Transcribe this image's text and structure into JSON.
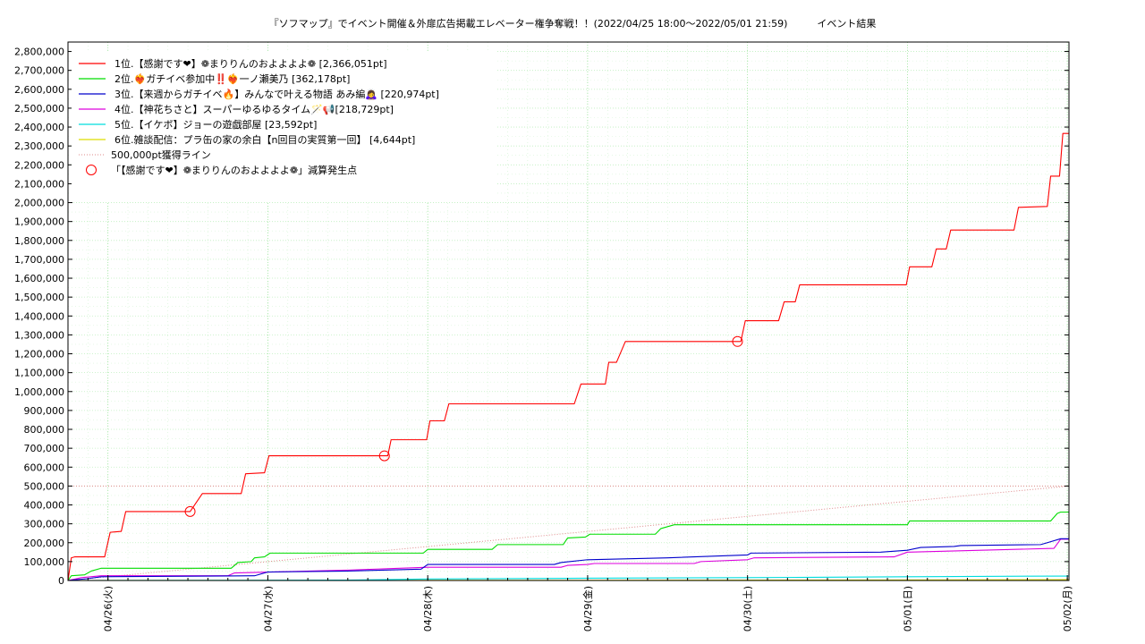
{
  "chart_data": {
    "type": "line",
    "title": "『ソフマップ』でイベント開催＆外扉広告掲載エレベーター権争奪戦！！(2022/04/25 18:00～2022/05/01 21:59)　　　イベント結果",
    "xlabel": "",
    "ylabel": "",
    "ylim": [
      0,
      2850000
    ],
    "y_ticks": [
      0,
      100000,
      200000,
      300000,
      400000,
      500000,
      600000,
      700000,
      800000,
      900000,
      1000000,
      1100000,
      1200000,
      1300000,
      1400000,
      1500000,
      1600000,
      1700000,
      1800000,
      1900000,
      2000000,
      2100000,
      2200000,
      2300000,
      2400000,
      2500000,
      2600000,
      2700000,
      2800000
    ],
    "y_tick_labels": [
      "0",
      "100,000",
      "200,000",
      "300,000",
      "400,000",
      "500,000",
      "600,000",
      "700,000",
      "800,000",
      "900,000",
      "1,000,000",
      "1,100,000",
      "1,200,000",
      "1,300,000",
      "1,400,000",
      "1,500,000",
      "1,600,000",
      "1,700,000",
      "1,800,000",
      "1,900,000",
      "2,000,000",
      "2,100,000",
      "2,200,000",
      "2,300,000",
      "2,400,000",
      "2,500,000",
      "2,600,000",
      "2,700,000",
      "2,800,000"
    ],
    "x_range": [
      "2022-04-25 18:00",
      "2022-05-02 00:15"
    ],
    "x_ticks": [
      "2022-04-26 00:00",
      "2022-04-27 00:00",
      "2022-04-28 00:00",
      "2022-04-29 00:00",
      "2022-04-30 00:00",
      "2022-05-01 00:00",
      "2022-05-02 00:00"
    ],
    "x_tick_labels": [
      "04/26(火)",
      "04/27(水)",
      "04/28(木)",
      "04/29(金)",
      "04/30(土)",
      "05/01(日)",
      "05/02(月)"
    ],
    "grid": true,
    "legend_position": "top-left",
    "series": [
      {
        "name": "1位.【感謝です❤】❁まりりんのおよよよよ❁ [2,366,051pt]",
        "color": "#ff0000",
        "points": [
          [
            "2022-04-25 18:00",
            0
          ],
          [
            "2022-04-25 18:30",
            120000
          ],
          [
            "2022-04-25 19:00",
            125000
          ],
          [
            "2022-04-25 23:30",
            125000
          ],
          [
            "2022-04-26 00:20",
            255000
          ],
          [
            "2022-04-26 02:00",
            260000
          ],
          [
            "2022-04-26 02:40",
            365000
          ],
          [
            "2022-04-26 12:00",
            365000
          ],
          [
            "2022-04-26 12:20",
            365000
          ],
          [
            "2022-04-26 14:10",
            460000
          ],
          [
            "2022-04-26 20:00",
            460000
          ],
          [
            "2022-04-26 20:40",
            565000
          ],
          [
            "2022-04-26 23:30",
            570000
          ],
          [
            "2022-04-27 00:10",
            660000
          ],
          [
            "2022-04-27 17:30",
            660000
          ],
          [
            "2022-04-27 18:00",
            660000
          ],
          [
            "2022-04-27 18:30",
            745000
          ],
          [
            "2022-04-27 23:50",
            745000
          ],
          [
            "2022-04-28 00:20",
            845000
          ],
          [
            "2022-04-28 02:30",
            845000
          ],
          [
            "2022-04-28 03:10",
            935000
          ],
          [
            "2022-04-28 22:00",
            935000
          ],
          [
            "2022-04-28 23:00",
            1040000
          ],
          [
            "2022-04-29 02:40",
            1040000
          ],
          [
            "2022-04-29 03:10",
            1155000
          ],
          [
            "2022-04-29 04:20",
            1155000
          ],
          [
            "2022-04-29 05:40",
            1265000
          ],
          [
            "2022-04-29 22:30",
            1265000
          ],
          [
            "2022-04-29 23:00",
            1265000
          ],
          [
            "2022-04-29 23:40",
            1375000
          ],
          [
            "2022-04-30 04:40",
            1375000
          ],
          [
            "2022-04-30 05:30",
            1475000
          ],
          [
            "2022-04-30 07:10",
            1475000
          ],
          [
            "2022-04-30 07:50",
            1565000
          ],
          [
            "2022-04-30 23:50",
            1565000
          ],
          [
            "2022-05-01 00:20",
            1660000
          ],
          [
            "2022-05-01 03:40",
            1660000
          ],
          [
            "2022-05-01 04:20",
            1755000
          ],
          [
            "2022-05-01 05:50",
            1755000
          ],
          [
            "2022-05-01 06:30",
            1855000
          ],
          [
            "2022-05-01 16:00",
            1855000
          ],
          [
            "2022-05-01 16:40",
            1975000
          ],
          [
            "2022-05-01 21:00",
            1980000
          ],
          [
            "2022-05-01 21:30",
            2140000
          ],
          [
            "2022-05-01 22:50",
            2140000
          ],
          [
            "2022-05-01 23:20",
            2366051
          ],
          [
            "2022-05-02 00:15",
            2366051
          ]
        ]
      },
      {
        "name": "2位.❤️‍🔥ガチイベ参加中‼️❤️‍🔥一ノ瀬美乃 [362,178pt]",
        "color": "#00dd00",
        "points": [
          [
            "2022-04-25 18:00",
            0
          ],
          [
            "2022-04-25 18:30",
            25000
          ],
          [
            "2022-04-25 20:30",
            30000
          ],
          [
            "2022-04-25 21:30",
            50000
          ],
          [
            "2022-04-25 23:00",
            65000
          ],
          [
            "2022-04-26 18:30",
            65000
          ],
          [
            "2022-04-26 19:30",
            95000
          ],
          [
            "2022-04-26 21:30",
            100000
          ],
          [
            "2022-04-26 22:00",
            120000
          ],
          [
            "2022-04-26 23:30",
            125000
          ],
          [
            "2022-04-27 00:20",
            145000
          ],
          [
            "2022-04-27 23:20",
            145000
          ],
          [
            "2022-04-28 00:00",
            165000
          ],
          [
            "2022-04-28 09:40",
            165000
          ],
          [
            "2022-04-28 10:30",
            190000
          ],
          [
            "2022-04-28 20:20",
            190000
          ],
          [
            "2022-04-28 21:00",
            225000
          ],
          [
            "2022-04-28 23:40",
            230000
          ],
          [
            "2022-04-29 00:20",
            245000
          ],
          [
            "2022-04-29 10:10",
            245000
          ],
          [
            "2022-04-29 11:00",
            275000
          ],
          [
            "2022-04-29 12:00",
            285000
          ],
          [
            "2022-04-29 13:00",
            295000
          ],
          [
            "2022-05-01 00:00",
            295000
          ],
          [
            "2022-05-01 00:20",
            315000
          ],
          [
            "2022-05-01 21:30",
            315000
          ],
          [
            "2022-05-01 22:30",
            355000
          ],
          [
            "2022-05-01 23:00",
            362178
          ],
          [
            "2022-05-02 00:15",
            362178
          ]
        ]
      },
      {
        "name": "3位.【来週からガチイベ🔥】みんなで叶える物語 あみ編🙇‍♀️ [220,974pt]",
        "color": "#0000cc",
        "points": [
          [
            "2022-04-25 18:00",
            0
          ],
          [
            "2022-04-25 21:00",
            10000
          ],
          [
            "2022-04-25 23:00",
            20000
          ],
          [
            "2022-04-26 22:00",
            25000
          ],
          [
            "2022-04-26 23:00",
            35000
          ],
          [
            "2022-04-27 00:00",
            45000
          ],
          [
            "2022-04-27 12:00",
            50000
          ],
          [
            "2022-04-27 23:00",
            60000
          ],
          [
            "2022-04-28 00:00",
            85000
          ],
          [
            "2022-04-28 19:00",
            85000
          ],
          [
            "2022-04-28 20:00",
            95000
          ],
          [
            "2022-04-29 00:00",
            110000
          ],
          [
            "2022-04-29 12:00",
            120000
          ],
          [
            "2022-04-30 00:00",
            135000
          ],
          [
            "2022-04-30 00:30",
            145000
          ],
          [
            "2022-04-30 20:00",
            150000
          ],
          [
            "2022-05-01 00:00",
            160000
          ],
          [
            "2022-05-01 02:00",
            175000
          ],
          [
            "2022-05-01 07:00",
            180000
          ],
          [
            "2022-05-01 08:00",
            185000
          ],
          [
            "2022-05-01 20:00",
            190000
          ],
          [
            "2022-05-01 21:00",
            200000
          ],
          [
            "2022-05-01 23:00",
            220974
          ],
          [
            "2022-05-02 00:15",
            220974
          ]
        ]
      },
      {
        "name": "4位.【神花ちさと】スーパーゆるゆるタイム🪄📢[218,729pt]",
        "color": "#dd00dd",
        "points": [
          [
            "2022-04-25 18:00",
            0
          ],
          [
            "2022-04-25 20:00",
            15000
          ],
          [
            "2022-04-25 23:00",
            25000
          ],
          [
            "2022-04-26 18:00",
            25000
          ],
          [
            "2022-04-26 19:00",
            40000
          ],
          [
            "2022-04-27 12:00",
            55000
          ],
          [
            "2022-04-28 00:00",
            70000
          ],
          [
            "2022-04-28 20:00",
            70000
          ],
          [
            "2022-04-28 21:00",
            80000
          ],
          [
            "2022-04-29 00:00",
            85000
          ],
          [
            "2022-04-29 01:00",
            90000
          ],
          [
            "2022-04-29 16:00",
            90000
          ],
          [
            "2022-04-29 17:00",
            100000
          ],
          [
            "2022-04-30 00:00",
            110000
          ],
          [
            "2022-04-30 01:00",
            120000
          ],
          [
            "2022-04-30 22:00",
            125000
          ],
          [
            "2022-05-01 00:00",
            150000
          ],
          [
            "2022-05-01 22:00",
            170000
          ],
          [
            "2022-05-01 23:00",
            218729
          ],
          [
            "2022-05-02 00:15",
            218729
          ]
        ]
      },
      {
        "name": "5位.【イケボ】ジョーの遊戯部屋 [23,592pt]",
        "color": "#00dddd",
        "points": [
          [
            "2022-04-25 18:00",
            0
          ],
          [
            "2022-04-27 12:00",
            2000
          ],
          [
            "2022-04-28 00:00",
            8000
          ],
          [
            "2022-04-29 00:00",
            12000
          ],
          [
            "2022-04-30 00:00",
            15000
          ],
          [
            "2022-05-01 00:00",
            20000
          ],
          [
            "2022-05-02 00:15",
            23592
          ]
        ]
      },
      {
        "name": "6位.雑談配信：プラ缶の家の余白【n回目の実質第一回】 [4,644pt]",
        "color": "#dddd00",
        "points": [
          [
            "2022-04-25 18:00",
            0
          ],
          [
            "2022-04-29 00:00",
            1000
          ],
          [
            "2022-05-01 00:00",
            3000
          ],
          [
            "2022-05-02 00:15",
            4644
          ]
        ]
      }
    ],
    "reference_lines": [
      {
        "name": "500,000pt獲得ライン",
        "color": "#dd8888",
        "style": "dotted",
        "horizontal_value": 500000,
        "points": [
          [
            "2022-04-25 18:00",
            0
          ],
          [
            "2022-05-02 00:15",
            500000
          ]
        ]
      }
    ],
    "markers": {
      "name": "「【感謝です❤】❁まりりんのおよよよよ❁」減算発生点",
      "color": "#ff0000",
      "points": [
        [
          "2022-04-26 12:20",
          365000
        ],
        [
          "2022-04-27 17:30",
          660000
        ],
        [
          "2022-04-29 22:30",
          1265000
        ]
      ]
    }
  }
}
